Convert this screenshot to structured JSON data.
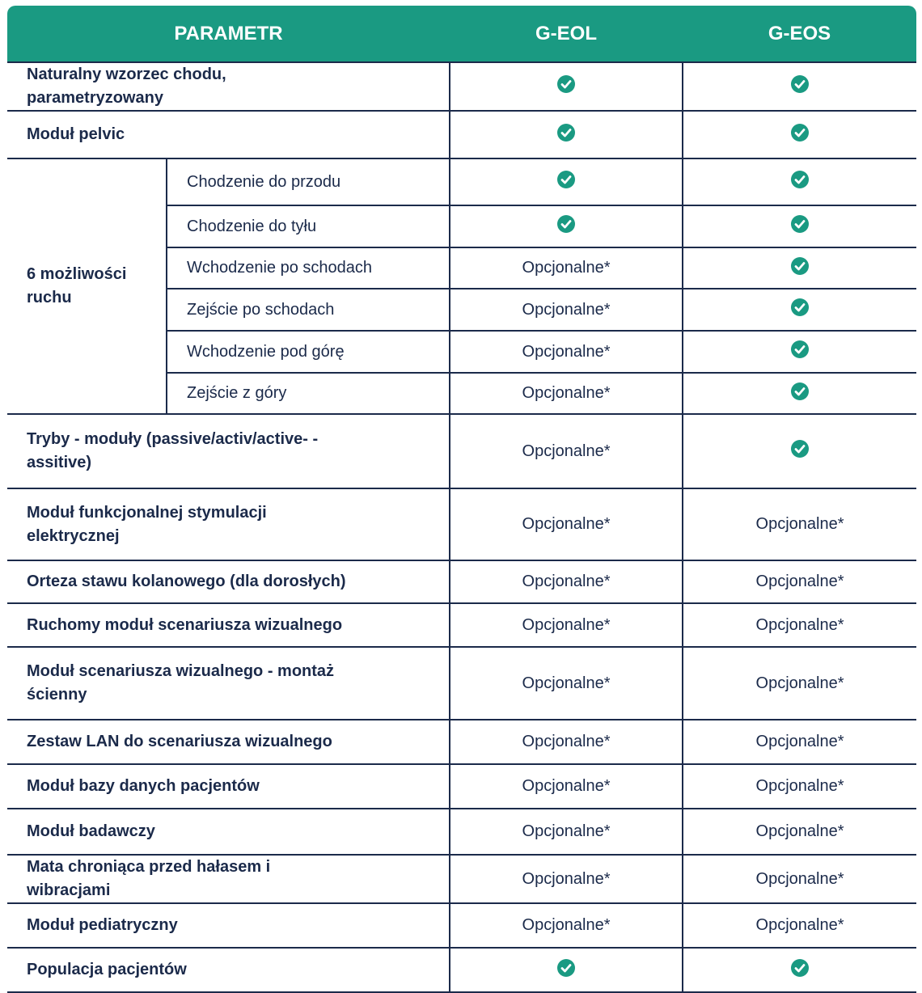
{
  "header": [
    "PARAMETR",
    "G-EOL",
    "G-EOS"
  ],
  "rows": [
    {
      "label": "Naturalny wzorzec chodu, parametryzowany",
      "cells": [
        true,
        true
      ]
    },
    {
      "label": "Moduł pelvic",
      "cells": [
        true,
        true
      ]
    },
    {
      "label": "6 możliwości ruchu",
      "items": [
        {
          "label": "Chodzenie do przodu",
          "cells": [
            true,
            true
          ]
        },
        {
          "label": "Chodzenie do tyłu",
          "cells": [
            true,
            true
          ]
        },
        {
          "label": "Wchodzenie po schodach",
          "cells": [
            "Opcjonalne*",
            true
          ]
        },
        {
          "label": "Zejście po schodach",
          "cells": [
            "Opcjonalne*",
            true
          ]
        },
        {
          "label": "Wchodzenie pod górę",
          "cells": [
            "Opcjonalne*",
            true
          ]
        },
        {
          "label": "Zejście z góry",
          "cells": [
            "Opcjonalne*",
            true
          ]
        }
      ]
    },
    {
      "label": "Tryby - moduły (passive/activ/active- -assitive)",
      "cells": [
        "Opcjonalne*",
        true
      ]
    },
    {
      "label": "Moduł funkcjonalnej stymulacji elektrycznej",
      "cells": [
        "Opcjonalne*",
        "Opcjonalne*"
      ]
    },
    {
      "label": "Orteza stawu kolanowego (dla dorosłych)",
      "cells": [
        "Opcjonalne*",
        "Opcjonalne*"
      ]
    },
    {
      "label": "Ruchomy moduł scenariusza wizualnego",
      "cells": [
        "Opcjonalne*",
        "Opcjonalne*"
      ]
    },
    {
      "label": "Moduł scenariusza wizualnego - montaż ścienny",
      "cells": [
        "Opcjonalne*",
        "Opcjonalne*"
      ]
    },
    {
      "label": "Zestaw LAN do scenariusza wizualnego",
      "cells": [
        "Opcjonalne*",
        "Opcjonalne*"
      ]
    },
    {
      "label": "Moduł bazy danych pacjentów",
      "cells": [
        "Opcjonalne*",
        "Opcjonalne*"
      ]
    },
    {
      "label": "Moduł badawczy",
      "cells": [
        "Opcjonalne*",
        "Opcjonalne*"
      ]
    },
    {
      "label": "Mata chroniąca przed hałasem i wibracjami",
      "cells": [
        "Opcjonalne*",
        "Opcjonalne*"
      ]
    },
    {
      "label": "Moduł pediatryczny",
      "cells": [
        "Opcjonalne*",
        "Opcjonalne*"
      ]
    },
    {
      "label": "Populacja pacjentów",
      "cells": [
        true,
        true
      ]
    }
  ]
}
